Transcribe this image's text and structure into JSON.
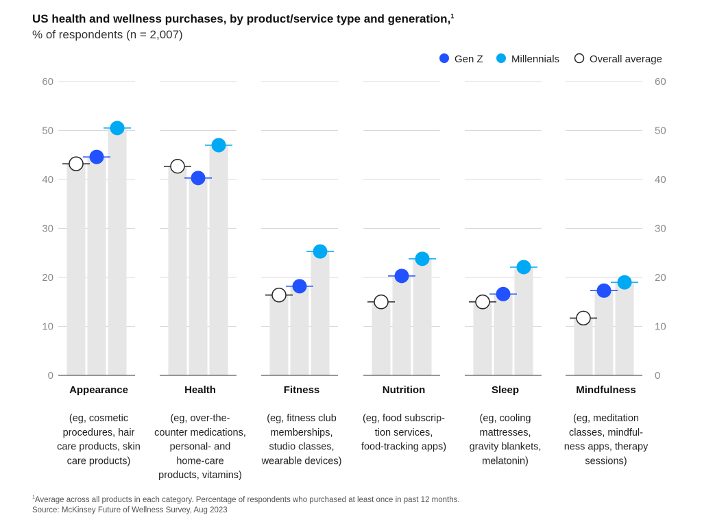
{
  "title": "US health and wellness purchases, by product/service type and generation,",
  "title_sup": "1",
  "subtitle": "% of respondents (n = 2,007)",
  "legend": [
    {
      "name": "Gen Z",
      "color": "#2251ff",
      "style": "filled"
    },
    {
      "name": "Millennials",
      "color": "#00a9f4",
      "style": "filled"
    },
    {
      "name": "Overall average",
      "color": "#ffffff",
      "style": "outline"
    }
  ],
  "chart_data": {
    "type": "bar",
    "title": "US health and wellness purchases, by product/service type and generation",
    "ylabel": "% of respondents",
    "ylim": [
      0,
      60
    ],
    "yticks": [
      "0",
      "10",
      "20",
      "30",
      "40",
      "50",
      "60"
    ],
    "categories": [
      "Appearance",
      "Health",
      "Fitness",
      "Nutrition",
      "Sleep",
      "Mindfulness"
    ],
    "descriptions": [
      [
        "(eg, cosmetic",
        "procedures, hair",
        "care products, skin",
        "care products)"
      ],
      [
        "(eg, over-the-",
        "counter medications,",
        "personal- and",
        "home-care",
        "products, vitamins)"
      ],
      [
        "(eg, fitness club",
        "memberships,",
        "studio classes,",
        "wearable devices)"
      ],
      [
        "(eg, food subscrip-",
        "tion services,",
        "food-tracking apps)"
      ],
      [
        "(eg, cooling",
        "mattresses,",
        "gravity blankets,",
        "melatonin)"
      ],
      [
        "(eg, meditation",
        "classes, mindful-",
        "ness apps, therapy",
        "sessions)"
      ]
    ],
    "series": [
      {
        "name": "Overall average",
        "values": [
          43.2,
          42.7,
          16.4,
          15.0,
          15.0,
          11.7
        ]
      },
      {
        "name": "Gen Z",
        "values": [
          44.6,
          40.3,
          18.2,
          20.3,
          16.6,
          17.3
        ]
      },
      {
        "name": "Millennials",
        "values": [
          50.5,
          47.0,
          25.3,
          23.8,
          22.1,
          19.0
        ]
      }
    ]
  },
  "footnote": "Average across all products in each category. Percentage of respondents who purchased at least once in past 12 months.",
  "footnote_sup": "1",
  "source": "Source: McKinsey Future of Wellness Survey, Aug 2023"
}
